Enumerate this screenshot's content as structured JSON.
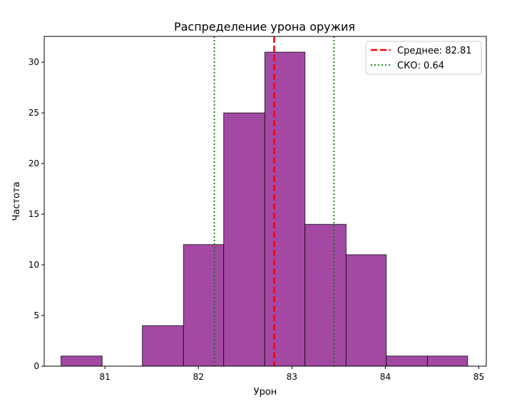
{
  "chart_data": {
    "type": "bar",
    "title": "Распределение урона оружия",
    "xlabel": "Урон",
    "ylabel": "Частота",
    "xlim": [
      80.35,
      85.08
    ],
    "ylim": [
      0,
      32.55
    ],
    "x_ticks": [
      81,
      82,
      83,
      84,
      85
    ],
    "y_ticks": [
      0,
      5,
      10,
      15,
      20,
      25,
      30
    ],
    "bins": [
      {
        "x0": 80.53,
        "x1": 80.97,
        "count": 1
      },
      {
        "x0": 80.97,
        "x1": 81.4,
        "count": 0
      },
      {
        "x0": 81.4,
        "x1": 81.84,
        "count": 4
      },
      {
        "x0": 81.84,
        "x1": 82.27,
        "count": 12
      },
      {
        "x0": 82.27,
        "x1": 82.71,
        "count": 25
      },
      {
        "x0": 82.71,
        "x1": 83.14,
        "count": 31
      },
      {
        "x0": 83.14,
        "x1": 83.58,
        "count": 14
      },
      {
        "x0": 83.58,
        "x1": 84.01,
        "count": 11
      },
      {
        "x0": 84.01,
        "x1": 84.45,
        "count": 1
      },
      {
        "x0": 84.45,
        "x1": 84.88,
        "count": 1
      }
    ],
    "bar_color": "#a349a4",
    "edge_color": "#000000",
    "mean": 82.81,
    "std": 0.64,
    "lines": [
      {
        "label": "Среднее: 82.81",
        "x": 82.81,
        "color": "#ff0000",
        "style": "dashed"
      },
      {
        "label": "СКО: 0.64",
        "x": 82.17,
        "color": "#008000",
        "style": "dotted"
      },
      {
        "label": "",
        "x": 83.45,
        "color": "#008000",
        "style": "dotted"
      }
    ],
    "legend_position": "top-right",
    "grid": false
  }
}
